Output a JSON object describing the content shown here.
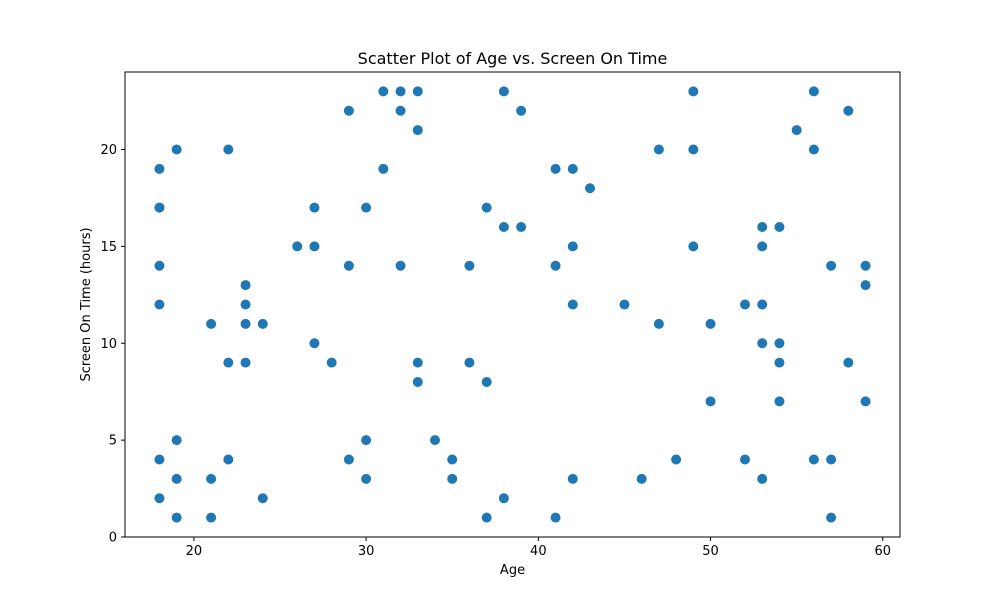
{
  "chart_data": {
    "type": "scatter",
    "title": "Scatter Plot of Age vs. Screen On Time",
    "xlabel": "Age",
    "ylabel": "Screen On Time (hours)",
    "xlim": [
      16,
      61
    ],
    "ylim": [
      0,
      24
    ],
    "xticks": [
      20,
      30,
      40,
      50,
      60
    ],
    "yticks": [
      0,
      5,
      10,
      15,
      20
    ],
    "grid": false,
    "legend": false,
    "marker_color": "#1f77b4",
    "series": [
      {
        "x": [
          18,
          18,
          18,
          18,
          18,
          18,
          18,
          19,
          19,
          19,
          19,
          21,
          21,
          21,
          22,
          22,
          22,
          23,
          23,
          23,
          23,
          24,
          24,
          26,
          27,
          27,
          27,
          28,
          29,
          29,
          29,
          30,
          30,
          30,
          31,
          31,
          32,
          32,
          32,
          33,
          33,
          33,
          33,
          34,
          35,
          35,
          36,
          36,
          37,
          37,
          37,
          38,
          38,
          38,
          39,
          39,
          41,
          41,
          41,
          42,
          42,
          42,
          42,
          43,
          45,
          46,
          47,
          47,
          48,
          49,
          49,
          49,
          50,
          50,
          52,
          52,
          53,
          53,
          53,
          53,
          53,
          54,
          54,
          54,
          54,
          55,
          56,
          56,
          56,
          57,
          57,
          57,
          58,
          58,
          59,
          59,
          59
        ],
        "y": [
          19,
          17,
          14,
          12,
          4,
          2,
          17,
          20,
          5,
          3,
          1,
          11,
          3,
          1,
          20,
          9,
          4,
          13,
          12,
          11,
          9,
          11,
          2,
          15,
          17,
          15,
          10,
          9,
          22,
          14,
          4,
          17,
          5,
          3,
          23,
          19,
          23,
          22,
          14,
          23,
          21,
          9,
          8,
          5,
          4,
          3,
          14,
          9,
          17,
          8,
          1,
          23,
          16,
          2,
          22,
          16,
          19,
          14,
          1,
          19,
          15,
          12,
          3,
          18,
          12,
          3,
          20,
          11,
          4,
          23,
          20,
          15,
          11,
          7,
          12,
          4,
          16,
          15,
          12,
          10,
          3,
          16,
          10,
          9,
          7,
          21,
          23,
          20,
          4,
          14,
          4,
          1,
          22,
          9,
          14,
          13,
          7
        ]
      }
    ]
  }
}
